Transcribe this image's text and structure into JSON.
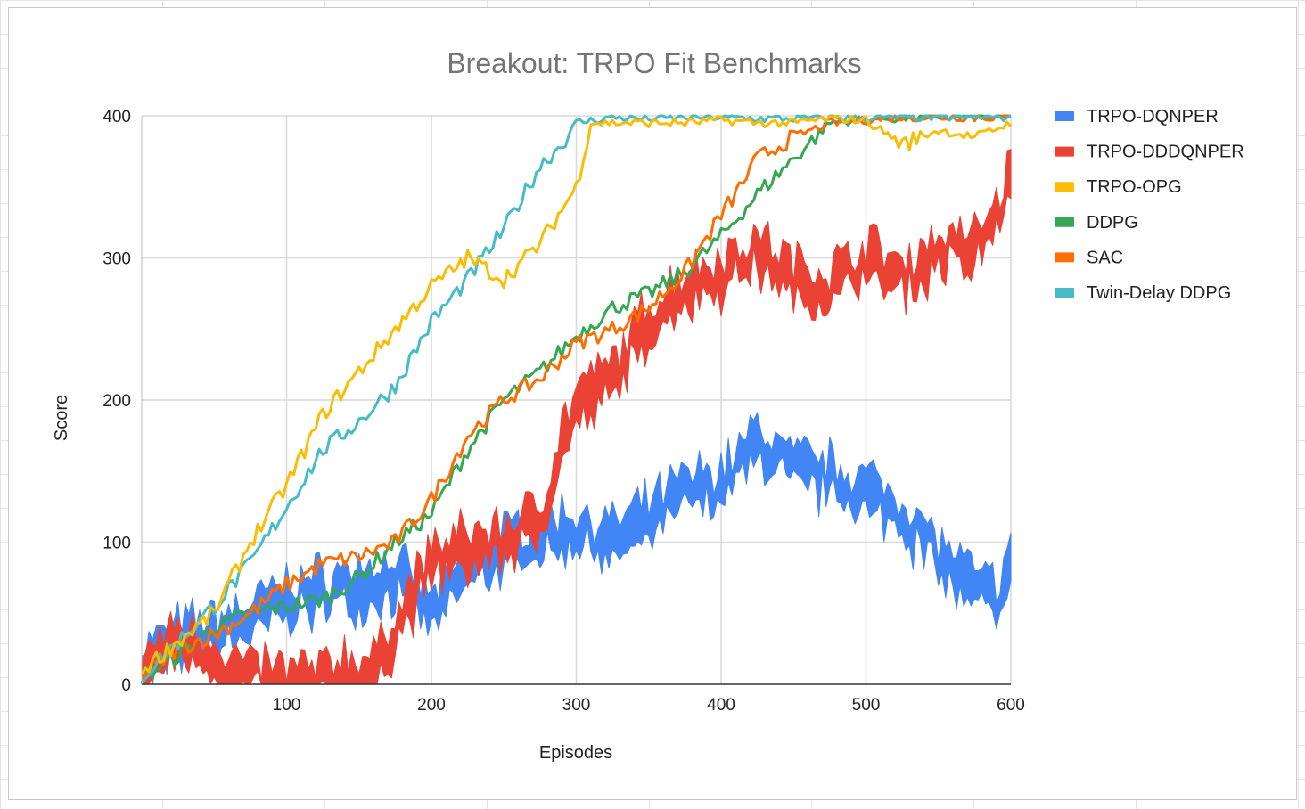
{
  "chart_data": {
    "type": "line",
    "title": "Breakout: TRPO Fit Benchmarks",
    "xlabel": "Episodes",
    "ylabel": "Score",
    "xlim": [
      0,
      600
    ],
    "ylim": [
      0,
      400
    ],
    "x_ticks": [
      "100",
      "200",
      "300",
      "400",
      "500",
      "600"
    ],
    "y_ticks": [
      "0",
      "100",
      "200",
      "300",
      "400"
    ],
    "grid": true,
    "legend_position": "right",
    "series": [
      {
        "name": "TRPO-DQNPER",
        "color": "#4285f4",
        "band": true,
        "x": [
          0,
          25,
          50,
          75,
          100,
          125,
          150,
          175,
          200,
          225,
          250,
          275,
          300,
          325,
          350,
          375,
          400,
          425,
          450,
          475,
          500,
          525,
          550,
          575,
          590,
          600
        ],
        "y": [
          15,
          30,
          35,
          45,
          60,
          65,
          70,
          75,
          50,
          80,
          95,
          105,
          110,
          100,
          115,
          135,
          140,
          170,
          150,
          145,
          135,
          120,
          90,
          65,
          60,
          80
        ],
        "spread": 15
      },
      {
        "name": "TRPO-DDDQNPER",
        "color": "#ea4335",
        "band": true,
        "x": [
          0,
          25,
          50,
          65,
          100,
          125,
          140,
          160,
          175,
          200,
          225,
          250,
          275,
          290,
          300,
          325,
          350,
          375,
          400,
          425,
          450,
          475,
          500,
          525,
          550,
          575,
          590,
          600
        ],
        "y": [
          10,
          30,
          20,
          5,
          0,
          0,
          10,
          5,
          40,
          85,
          95,
          100,
          115,
          170,
          195,
          215,
          255,
          280,
          290,
          305,
          285,
          280,
          300,
          285,
          305,
          305,
          330,
          355
        ],
        "spread": 15
      },
      {
        "name": "TRPO-OPG",
        "color": "#fbbc04",
        "band": false,
        "x": [
          0,
          25,
          50,
          75,
          100,
          125,
          150,
          175,
          200,
          225,
          250,
          275,
          300,
          310,
          325,
          350,
          375,
          400,
          425,
          450,
          475,
          500,
          525,
          550,
          575,
          600
        ],
        "y": [
          10,
          30,
          50,
          100,
          140,
          190,
          220,
          250,
          280,
          300,
          285,
          310,
          350,
          395,
          395,
          395,
          395,
          397,
          395,
          395,
          398,
          397,
          380,
          390,
          385,
          395
        ]
      },
      {
        "name": "DDPG",
        "color": "#34a853",
        "band": false,
        "x": [
          0,
          25,
          50,
          75,
          100,
          125,
          150,
          175,
          200,
          225,
          250,
          275,
          300,
          325,
          350,
          375,
          400,
          425,
          450,
          475,
          500,
          525,
          550,
          575,
          600
        ],
        "y": [
          5,
          20,
          40,
          50,
          55,
          60,
          75,
          100,
          120,
          165,
          200,
          220,
          245,
          265,
          275,
          290,
          315,
          345,
          370,
          395,
          398,
          398,
          399,
          399,
          399
        ]
      },
      {
        "name": "SAC",
        "color": "#ff6d01",
        "band": false,
        "x": [
          0,
          25,
          50,
          75,
          100,
          125,
          150,
          175,
          200,
          225,
          250,
          275,
          300,
          325,
          350,
          375,
          400,
          410,
          425,
          450,
          475,
          500,
          525,
          550,
          575,
          600
        ],
        "y": [
          5,
          25,
          35,
          50,
          70,
          85,
          90,
          100,
          130,
          175,
          200,
          215,
          240,
          250,
          265,
          290,
          330,
          345,
          370,
          385,
          395,
          397,
          399,
          399,
          399,
          399
        ]
      },
      {
        "name": "Twin-Delay DDPG",
        "color": "#46bdc6",
        "band": false,
        "x": [
          0,
          25,
          50,
          75,
          100,
          125,
          150,
          175,
          200,
          225,
          250,
          275,
          290,
          300,
          325,
          350,
          375,
          400,
          425,
          450,
          475,
          500,
          525,
          550,
          575,
          600
        ],
        "y": [
          5,
          30,
          55,
          85,
          125,
          165,
          185,
          210,
          255,
          285,
          320,
          365,
          380,
          395,
          399,
          398,
          399,
          399,
          398,
          398,
          399,
          398,
          399,
          399,
          399,
          399
        ]
      }
    ]
  }
}
